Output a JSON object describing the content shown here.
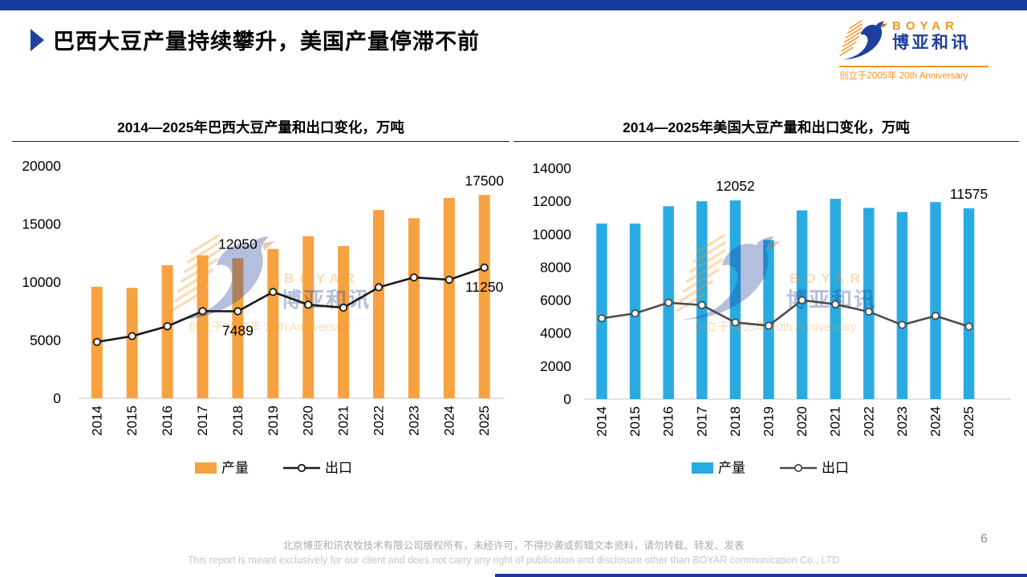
{
  "header": {
    "title": "巴西大豆产量持续攀升，美国产量停滞不前"
  },
  "logo": {
    "brand_en": "BOYAR",
    "brand_cn": "博亚和讯",
    "tagline": "创立于2005年 20th Anniversary",
    "blue": "#1E3F9D",
    "orange": "#F7941D"
  },
  "colors": {
    "top_bar": "#1A3A9C",
    "bar_orange": "#F7A240",
    "bar_cyan": "#29ABE2",
    "line_black": "#1A1A1A",
    "line_gray": "#4D4D4D",
    "axis_gray": "#D9D9D9"
  },
  "chart_data": [
    {
      "type": "bar+line",
      "title": "2014—2025年巴西大豆产量和出口变化，万吨",
      "unit": "万吨",
      "categories": [
        "2014",
        "2015",
        "2016",
        "2017",
        "2018",
        "2019",
        "2020",
        "2021",
        "2022",
        "2023",
        "2024",
        "2025"
      ],
      "series": [
        {
          "name": "产量",
          "type": "bar",
          "color": "#F7A240",
          "values": [
            9600,
            9500,
            11450,
            12300,
            12050,
            12850,
            13950,
            13100,
            16200,
            15500,
            17250,
            17500
          ]
        },
        {
          "name": "出口",
          "type": "line",
          "color": "#1A1A1A",
          "values": [
            4850,
            5350,
            6200,
            7500,
            7489,
            9150,
            8050,
            7800,
            9550,
            10400,
            10200,
            11250
          ]
        }
      ],
      "ylim": [
        0,
        20000
      ],
      "ytick_step": 5000,
      "grid": false,
      "legend_position": "bottom",
      "annotations": [
        {
          "series": "产量",
          "index": 4,
          "text": "12050",
          "position": "above"
        },
        {
          "series": "出口",
          "index": 4,
          "text": "7489",
          "position": "below"
        },
        {
          "series": "产量",
          "index": 11,
          "text": "17500",
          "position": "above"
        },
        {
          "series": "出口",
          "index": 11,
          "text": "11250",
          "position": "below"
        }
      ]
    },
    {
      "type": "bar+line",
      "title": "2014—2025年美国大豆产量和出口变化，万吨",
      "unit": "万吨",
      "categories": [
        "2014",
        "2015",
        "2016",
        "2017",
        "2018",
        "2019",
        "2020",
        "2021",
        "2022",
        "2023",
        "2024",
        "2025"
      ],
      "series": [
        {
          "name": "产量",
          "type": "bar",
          "color": "#29ABE2",
          "values": [
            10650,
            10650,
            11700,
            12000,
            12052,
            9650,
            11450,
            12150,
            11600,
            11350,
            11950,
            11575
          ]
        },
        {
          "name": "出口",
          "type": "line",
          "color": "#4D4D4D",
          "values": [
            4900,
            5200,
            5850,
            5700,
            4650,
            4450,
            6000,
            5750,
            5300,
            4500,
            5050,
            4400
          ]
        }
      ],
      "ylim": [
        0,
        14000
      ],
      "ytick_step": 2000,
      "grid": false,
      "legend_position": "bottom",
      "annotations": [
        {
          "series": "产量",
          "index": 4,
          "text": "12052",
          "position": "above"
        },
        {
          "series": "产量",
          "index": 11,
          "text": "11575",
          "position": "above"
        }
      ]
    }
  ],
  "footer": {
    "line1": "北京博亚和讯农牧技术有限公司版权所有，未经许可，不得抄袭或剪辑文本资料，请勿转载、转发、发表",
    "line2": "This report is meant exclusively for our client and does not carry any right of publication and disclosure other than BOYAR communication Co., LTD",
    "page_number": "6"
  }
}
